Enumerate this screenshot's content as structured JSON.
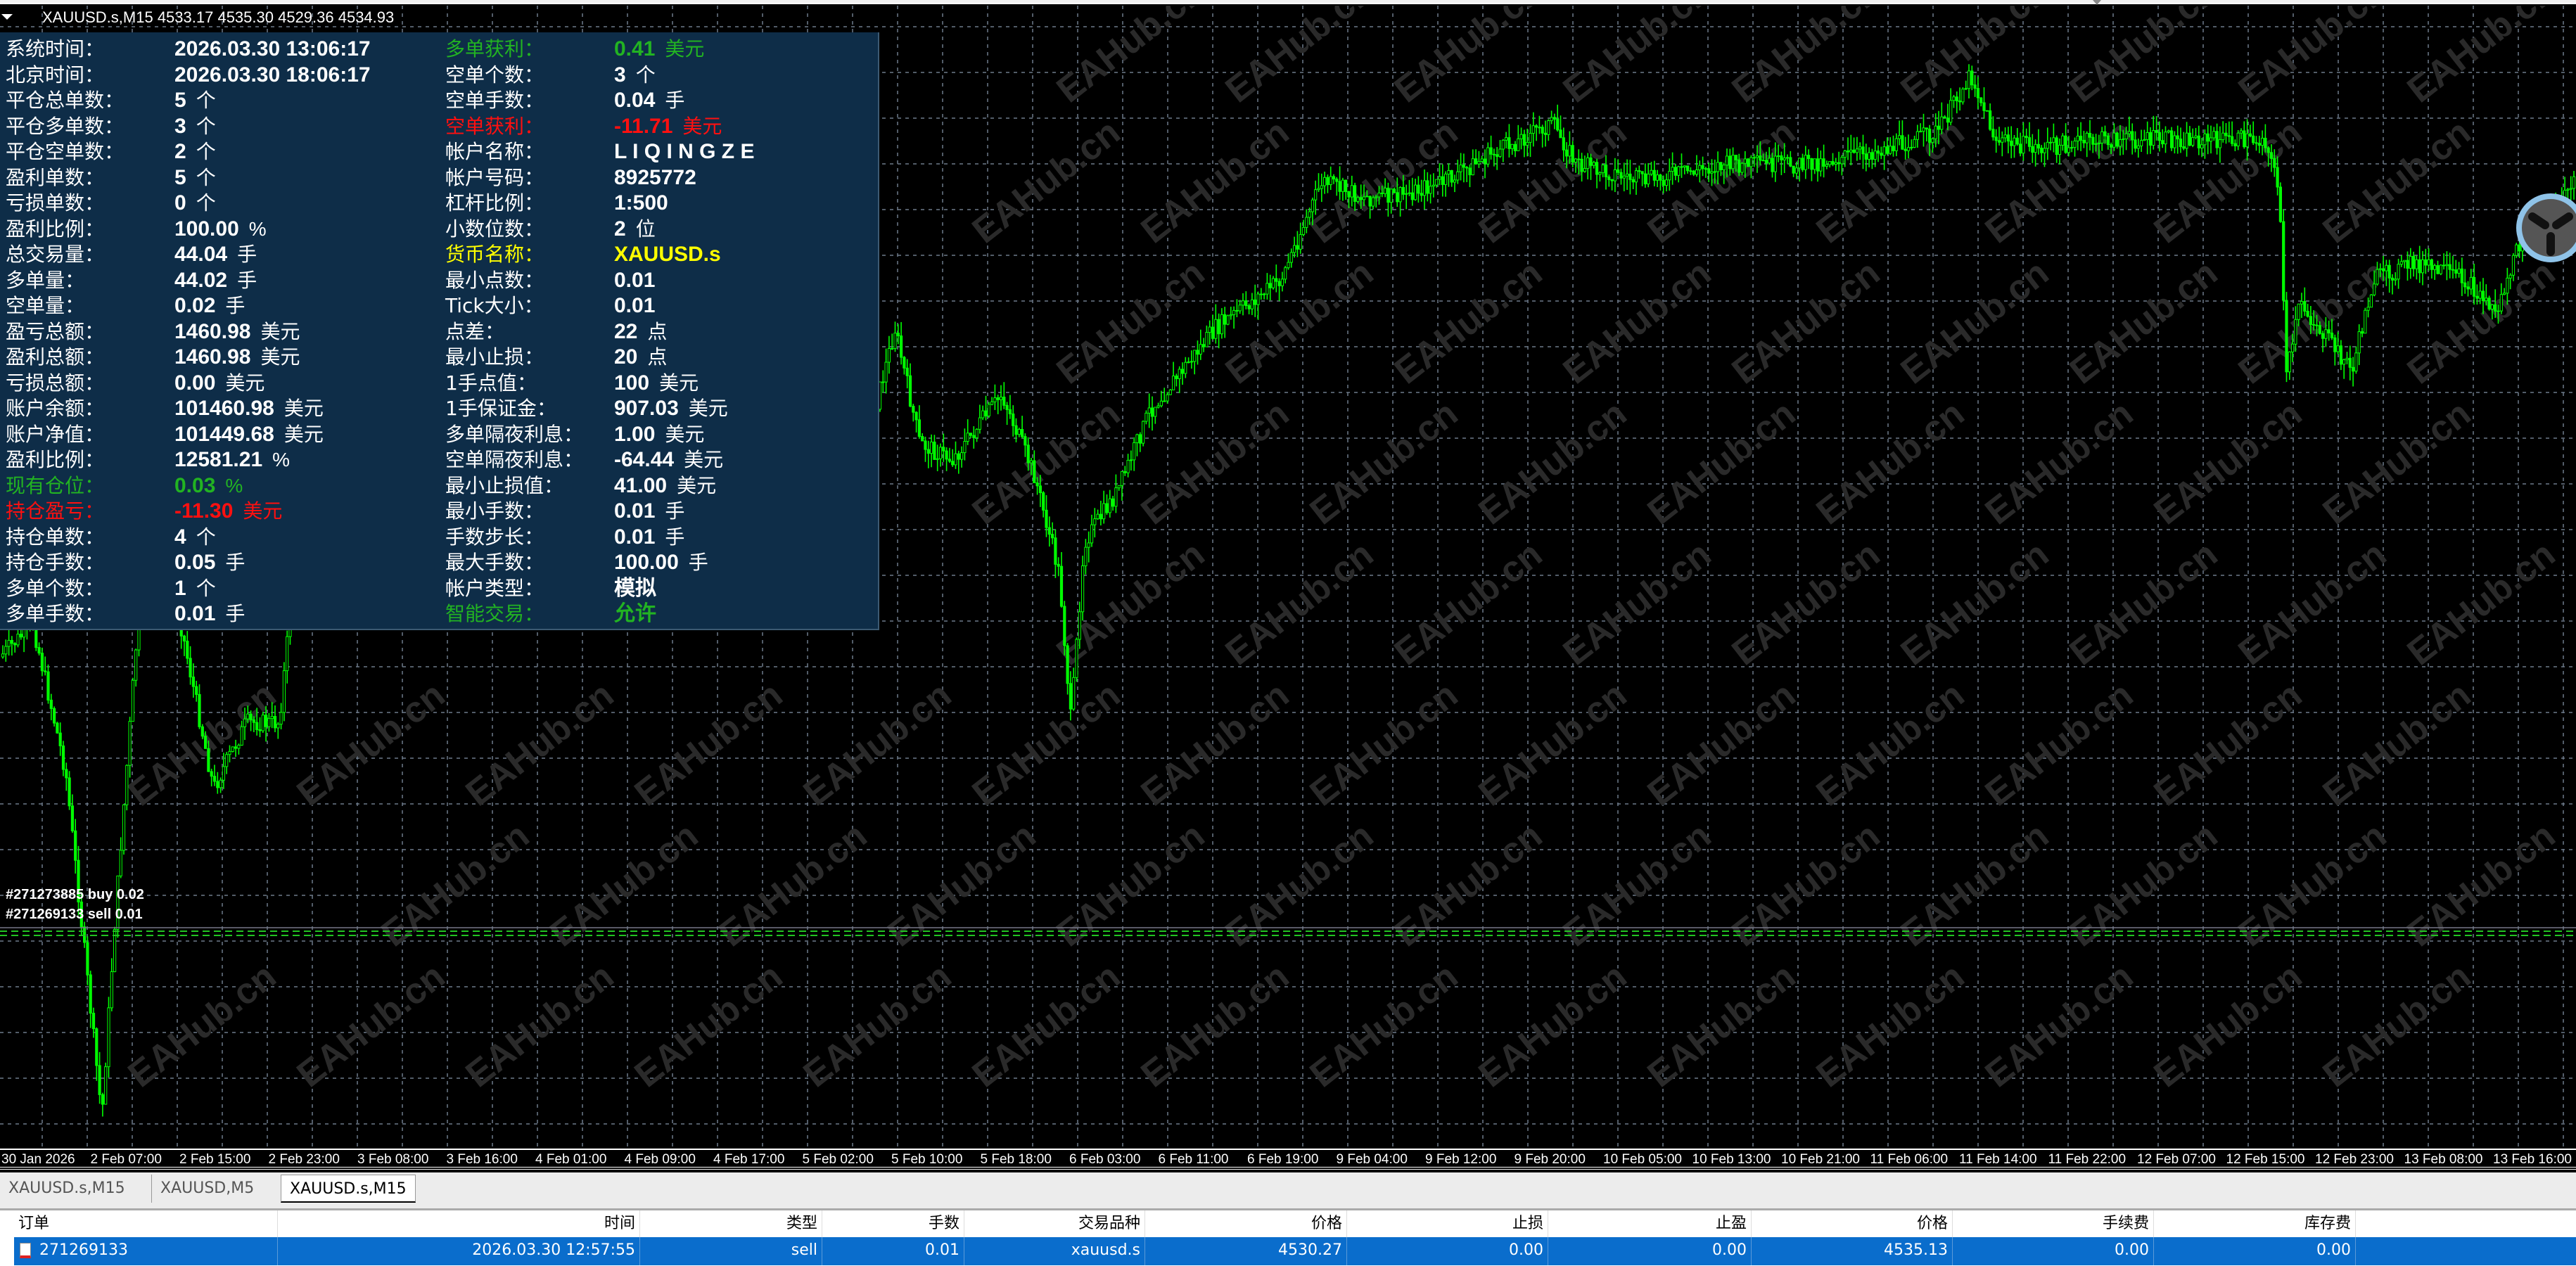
{
  "chart": {
    "title": "XAUUSD.s,M15  4533.17 4535.30 4529.36 4534.93",
    "candle_color": "#00ff00",
    "background": "#000000",
    "grid_color": "#6d7a8a",
    "watermark": "EAHub.cn",
    "trade_labels": [
      "#271269133 sell 0.01",
      "#271273885 buy 0.02"
    ],
    "time_axis": [
      "30 Jan 2026",
      "2 Feb 07:00",
      "2 Feb 15:00",
      "2 Feb 23:00",
      "3 Feb 08:00",
      "3 Feb 16:00",
      "4 Feb 01:00",
      "4 Feb 09:00",
      "4 Feb 17:00",
      "5 Feb 02:00",
      "5 Feb 10:00",
      "5 Feb 18:00",
      "6 Feb 03:00",
      "6 Feb 11:00",
      "6 Feb 19:00",
      "9 Feb 04:00",
      "9 Feb 12:00",
      "9 Feb 20:00",
      "10 Feb 05:00",
      "10 Feb 13:00",
      "10 Feb 21:00",
      "11 Feb 06:00",
      "11 Feb 14:00",
      "11 Feb 22:00",
      "12 Feb 07:00",
      "12 Feb 15:00",
      "12 Feb 23:00",
      "13 Feb 08:00",
      "13 Feb 16:00"
    ]
  },
  "panel": {
    "rows": [
      {
        "label": "系统时间：",
        "value": "2026.03.30 13:06:17",
        "unit": ""
      },
      {
        "label": "北京时间：",
        "value": "2026.03.30 18:06:17",
        "unit": ""
      },
      {
        "label": "平仓总单数：",
        "value": "5",
        "unit": "个"
      },
      {
        "label": "平仓多单数：",
        "value": "3",
        "unit": "个"
      },
      {
        "label": "平仓空单数：",
        "value": "2",
        "unit": "个"
      },
      {
        "label": "盈利单数：",
        "value": "5",
        "unit": "个"
      },
      {
        "label": "亏损单数：",
        "value": "0",
        "unit": "个"
      },
      {
        "label": "盈利比例：",
        "value": "100.00",
        "unit": "%"
      },
      {
        "label": "总交易量：",
        "value": "44.04",
        "unit": "手"
      },
      {
        "label": "多单量：",
        "value": "44.02",
        "unit": "手"
      },
      {
        "label": "空单量：",
        "value": "0.02",
        "unit": "手"
      },
      {
        "label": "盈亏总额：",
        "value": "1460.98",
        "unit": "美元"
      },
      {
        "label": "盈利总额：",
        "value": "1460.98",
        "unit": "美元"
      },
      {
        "label": "亏损总额：",
        "value": "0.00",
        "unit": "美元"
      },
      {
        "label": "账户余额：",
        "value": "101460.98",
        "unit": "美元"
      },
      {
        "label": "账户净值：",
        "value": "101449.68",
        "unit": "美元"
      },
      {
        "label": "盈利比例：",
        "value": "12581.21",
        "unit": "%"
      },
      {
        "label": "现有仓位：",
        "value": "0.03",
        "unit": "%",
        "color": "#22b322"
      },
      {
        "label": "持仓盈亏：",
        "value": "-11.30",
        "unit": "美元",
        "color": "#ff1010"
      },
      {
        "label": "持仓单数：",
        "value": "4",
        "unit": "个"
      },
      {
        "label": "持仓手数：",
        "value": "0.05",
        "unit": "手"
      },
      {
        "label": "多单个数：",
        "value": "1",
        "unit": "个"
      },
      {
        "label": "多单手数：",
        "value": "0.01",
        "unit": "手"
      },
      {
        "label": "多单获利：",
        "value": "0.41",
        "unit": "美元",
        "color": "#22b322"
      },
      {
        "label": "空单个数：",
        "value": "3",
        "unit": "个"
      },
      {
        "label": "空单手数：",
        "value": "0.04",
        "unit": "手"
      },
      {
        "label": "空单获利：",
        "value": "-11.71",
        "unit": "美元",
        "color": "#ff1010"
      },
      {
        "label": "帐户名称：",
        "value": "L I   Q I N G Z E",
        "unit": ""
      },
      {
        "label": "帐户号码：",
        "value": "8925772",
        "unit": ""
      },
      {
        "label": "杠杆比例：",
        "value": "1:500",
        "unit": ""
      },
      {
        "label": "小数位数：",
        "value": "2",
        "unit": "位"
      },
      {
        "label": "货币名称：",
        "value": "XAUUSD.s",
        "unit": "",
        "color": "#ffff00"
      },
      {
        "label": "最小点数：",
        "value": "0.01",
        "unit": ""
      },
      {
        "label": "Tick大小：",
        "value": " 0.01",
        "unit": ""
      },
      {
        "label": "点差：",
        "value": "22",
        "unit": "点"
      },
      {
        "label": "最小止损：",
        "value": "20",
        "unit": "点"
      },
      {
        "label": "1手点值：",
        "value": "100",
        "unit": "美元"
      },
      {
        "label": "1手保证金：",
        "value": "907.03",
        "unit": "美元"
      },
      {
        "label": "多单隔夜利息：",
        "value": "1.00",
        "unit": "美元"
      },
      {
        "label": "空单隔夜利息：",
        "value": "-64.44",
        "unit": "美元"
      },
      {
        "label": "最小止损值：",
        "value": "41.00",
        "unit": "美元"
      },
      {
        "label": "最小手数：",
        "value": "0.01",
        "unit": "手"
      },
      {
        "label": "手数步长：",
        "value": "0.01",
        "unit": "手"
      },
      {
        "label": "最大手数：",
        "value": "100.00",
        "unit": "手"
      },
      {
        "label": "帐户类型：",
        "value": "模拟",
        "unit": ""
      },
      {
        "label": "智能交易：",
        "value": "允许",
        "unit": "",
        "color": "#22b322"
      }
    ]
  },
  "tabs": [
    {
      "label": "XAUUSD.s,M15"
    },
    {
      "label": "XAUUSD,M5"
    },
    {
      "label": "XAUUSD.s,M15",
      "active": true
    }
  ],
  "table": {
    "headers": [
      "订单",
      "时间",
      "类型",
      "手数",
      "交易品种",
      "价格",
      "止损",
      "止盈",
      "价格",
      "手续费",
      "库存费"
    ],
    "rows": [
      [
        "271269133",
        "2026.03.30 12:57:55",
        "sell",
        "0.01",
        "xauusd.s",
        "4530.27",
        "0.00",
        "0.00",
        "4535.13",
        "0.00",
        "0.00"
      ]
    ],
    "selected_color": "#0a6dcc"
  }
}
